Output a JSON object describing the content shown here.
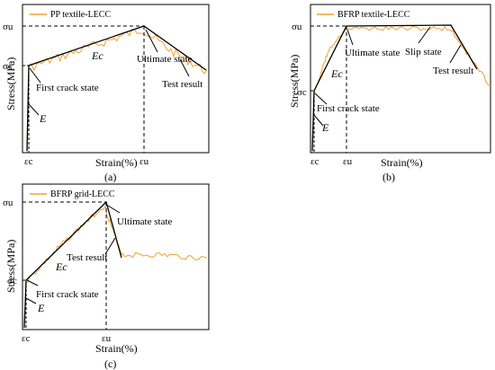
{
  "chart_data": [
    {
      "type": "line",
      "caption": "(a)",
      "legend": "PP textile-LECC",
      "xlabel": "Strain(%)",
      "ylabel": "Stress(MPa)",
      "x_ticks": [
        "εc",
        "εu"
      ],
      "y_ticks": [
        "σu",
        "σc"
      ],
      "annotations": [
        "First crack state",
        "Ultimate state",
        "Test result"
      ],
      "slope_labels": [
        "E",
        "Ec"
      ],
      "model_points": [
        [
          0,
          0
        ],
        [
          0.01,
          0.49
        ],
        [
          0.55,
          0.95
        ],
        [
          0.98,
          0.58
        ]
      ],
      "test_result_series": "fluctuating experimental curve around the model line"
    },
    {
      "type": "line",
      "caption": "(b)",
      "legend": "BFRP textile-LECC",
      "xlabel": "Strain(%)",
      "ylabel": "Stress(MPa)",
      "x_ticks": [
        "εc",
        "εu"
      ],
      "y_ticks": [
        "σu",
        "σc"
      ],
      "annotations": [
        "First crack state",
        "Ultimate state",
        "Slip state",
        "Test result"
      ],
      "slope_labels": [
        "E",
        "Ec"
      ],
      "model_points": [
        [
          0,
          0
        ],
        [
          0.02,
          0.42
        ],
        [
          0.2,
          0.96
        ],
        [
          0.7,
          0.97
        ],
        [
          0.85,
          0.58
        ]
      ],
      "test_result_series": "fluctuating experimental curve with plateau"
    },
    {
      "type": "line",
      "caption": "(c)",
      "legend": "BFRP grid-LECC",
      "xlabel": "Strain(%)",
      "ylabel": "Stress(MPa)",
      "x_ticks": [
        "εc",
        "εu"
      ],
      "y_ticks": [
        "σu",
        "σc"
      ],
      "annotations": [
        "Ultimate state",
        "Test result",
        "First crack state"
      ],
      "slope_labels": [
        "E",
        "Ec"
      ],
      "model_points": [
        [
          0,
          0
        ],
        [
          0.02,
          0.38
        ],
        [
          0.45,
          0.97
        ],
        [
          0.55,
          0.5
        ]
      ],
      "test_result_series": "fluctuating experimental curve with residual plateau"
    }
  ]
}
